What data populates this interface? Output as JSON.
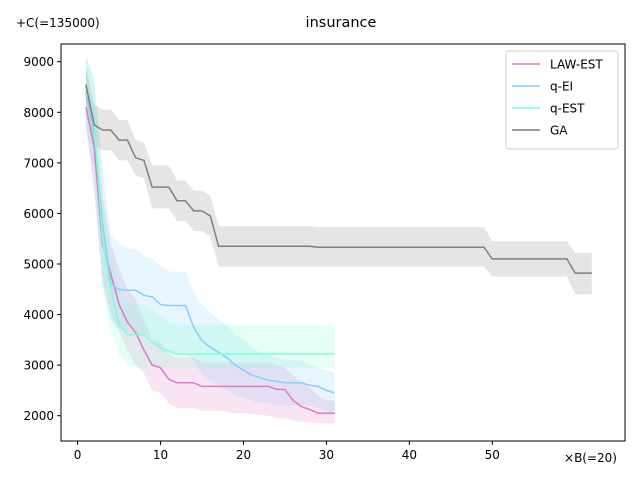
{
  "chart_data": {
    "type": "line",
    "title": "insurance",
    "xlabel": "",
    "ylabel": "",
    "x_offset_label": "×B(=20)",
    "y_offset_label": "+C(=135000)",
    "xlim": [
      -2,
      66
    ],
    "ylim": [
      1500,
      9350
    ],
    "x_ticks": [
      0,
      10,
      20,
      30,
      40,
      50
    ],
    "y_ticks": [
      2000,
      3000,
      4000,
      5000,
      6000,
      7000,
      8000,
      9000
    ],
    "legend_position": "top-right",
    "grid": false,
    "series": [
      {
        "name": "LAW-EST",
        "color": "#e377c2",
        "x": [
          1,
          2,
          3,
          4,
          5,
          6,
          7,
          8,
          9,
          10,
          11,
          12,
          13,
          14,
          15,
          16,
          17,
          18,
          19,
          20,
          21,
          22,
          23,
          24,
          25,
          26,
          27,
          28,
          29,
          30,
          31
        ],
        "mean": [
          8100,
          7300,
          5400,
          4800,
          4200,
          3850,
          3650,
          3300,
          3000,
          2950,
          2720,
          2650,
          2650,
          2650,
          2580,
          2580,
          2580,
          2580,
          2580,
          2580,
          2580,
          2580,
          2580,
          2520,
          2520,
          2300,
          2180,
          2120,
          2050,
          2050,
          2050
        ],
        "lower": [
          7700,
          6400,
          4600,
          4000,
          3650,
          3300,
          3000,
          2850,
          2500,
          2450,
          2250,
          2150,
          2150,
          2150,
          2100,
          2100,
          2100,
          2080,
          2050,
          2050,
          2030,
          2020,
          2000,
          1950,
          1950,
          1900,
          1880,
          1860,
          1850,
          1850,
          1850
        ],
        "upper": [
          8500,
          7900,
          6300,
          5400,
          4900,
          4500,
          4300,
          3900,
          3500,
          3450,
          3200,
          3150,
          3150,
          3150,
          3050,
          3050,
          3050,
          3050,
          3050,
          3050,
          3050,
          3050,
          3050,
          3000,
          2950,
          2800,
          2650,
          2550,
          2400,
          2300,
          2300
        ]
      },
      {
        "name": "q-EI",
        "color": "#87cefa",
        "x": [
          1,
          2,
          3,
          4,
          5,
          6,
          7,
          8,
          9,
          10,
          11,
          12,
          13,
          14,
          15,
          16,
          17,
          18,
          19,
          20,
          21,
          22,
          23,
          24,
          25,
          26,
          27,
          28,
          29,
          30,
          31
        ],
        "mean": [
          8400,
          7600,
          5800,
          4600,
          4500,
          4480,
          4480,
          4380,
          4350,
          4200,
          4180,
          4180,
          4180,
          3750,
          3480,
          3350,
          3250,
          3150,
          3000,
          2900,
          2800,
          2750,
          2700,
          2680,
          2650,
          2650,
          2650,
          2600,
          2580,
          2500,
          2450
        ],
        "lower": [
          7800,
          6600,
          4800,
          3900,
          3700,
          3650,
          3600,
          3600,
          3500,
          3300,
          3200,
          3200,
          3200,
          3100,
          2800,
          2700,
          2600,
          2500,
          2400,
          2350,
          2300,
          2250,
          2250,
          2200,
          2200,
          2200,
          2200,
          2200,
          2150,
          2100,
          2050
        ],
        "upper": [
          9100,
          8600,
          6900,
          5600,
          5400,
          5300,
          5300,
          5150,
          5100,
          4950,
          4850,
          4850,
          4850,
          4450,
          4200,
          4050,
          3900,
          3800,
          3600,
          3500,
          3350,
          3250,
          3200,
          3150,
          3100,
          3100,
          3100,
          3000,
          2950,
          2900,
          2850
        ]
      },
      {
        "name": "q-EST",
        "color": "#7fffd4",
        "x": [
          1,
          2,
          3,
          4,
          5,
          6,
          7,
          8,
          9,
          10,
          11,
          12,
          13,
          14,
          15,
          16,
          17,
          18,
          19,
          20,
          21,
          22,
          23,
          24,
          25,
          26,
          27,
          28,
          29,
          30,
          31
        ],
        "mean": [
          8500,
          7800,
          5500,
          4500,
          3800,
          3600,
          3600,
          3600,
          3450,
          3350,
          3280,
          3220,
          3220,
          3220,
          3220,
          3220,
          3220,
          3220,
          3220,
          3220,
          3220,
          3220,
          3220,
          3220,
          3220,
          3220,
          3220,
          3220,
          3220,
          3220,
          3220
        ],
        "lower": [
          7700,
          6800,
          4500,
          3700,
          3200,
          3000,
          2950,
          2950,
          2950,
          2950,
          2950,
          2950,
          2950,
          2950,
          2950,
          2950,
          2950,
          2950,
          2950,
          2950,
          2950,
          2950,
          2950,
          2950,
          2950,
          2950,
          2950,
          2950,
          2950,
          2950,
          2950
        ],
        "upper": [
          9150,
          8700,
          6600,
          5200,
          4500,
          4250,
          4200,
          4200,
          4100,
          3950,
          3850,
          3800,
          3800,
          3800,
          3800,
          3800,
          3800,
          3800,
          3800,
          3800,
          3800,
          3800,
          3800,
          3800,
          3800,
          3800,
          3800,
          3800,
          3800,
          3800,
          3800
        ]
      },
      {
        "name": "GA",
        "color": "#7f7f7f",
        "x": [
          1,
          2,
          3,
          4,
          5,
          6,
          7,
          8,
          9,
          10,
          11,
          12,
          13,
          14,
          15,
          16,
          17,
          28,
          29,
          49,
          50,
          59,
          60,
          62
        ],
        "mean": [
          8550,
          7750,
          7650,
          7650,
          7450,
          7450,
          7100,
          7050,
          6520,
          6520,
          6520,
          6250,
          6250,
          6050,
          6050,
          5950,
          5350,
          5350,
          5330,
          5330,
          5100,
          5100,
          4820,
          4820
        ],
        "lower": [
          8200,
          7350,
          7250,
          7250,
          7050,
          7050,
          6750,
          6700,
          6100,
          6100,
          6100,
          5850,
          5850,
          5650,
          5650,
          5550,
          4950,
          4950,
          4950,
          4950,
          4750,
          4750,
          4400,
          4400
        ],
        "upper": [
          8900,
          8150,
          8050,
          8050,
          7850,
          7850,
          7450,
          7400,
          6950,
          6950,
          6950,
          6650,
          6650,
          6450,
          6450,
          6350,
          5750,
          5750,
          5730,
          5730,
          5450,
          5450,
          5220,
          5220
        ]
      }
    ]
  }
}
